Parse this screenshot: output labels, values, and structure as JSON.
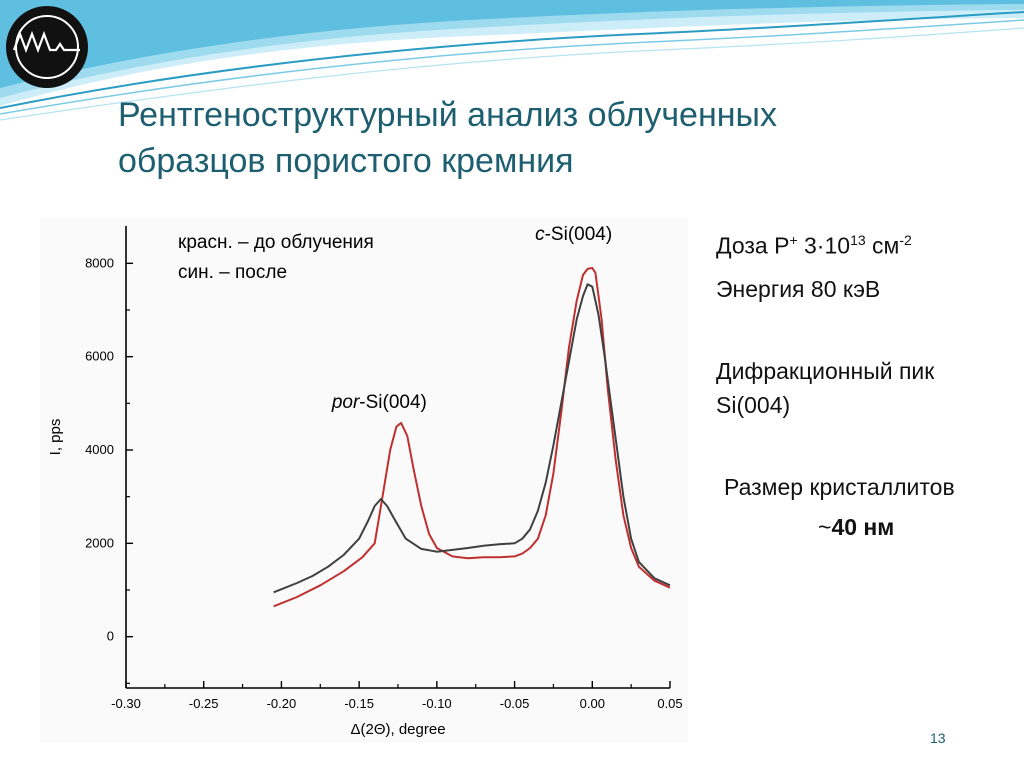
{
  "slide": {
    "title_line1": "Рентгеноструктурный анализ облученных",
    "title_line2": "образцов пористого кремния",
    "slide_number": "13",
    "logo_icon": "signal-wave-logo-icon",
    "colors": {
      "title": "#1d5f70",
      "wave_light": "#8fd3ea",
      "wave_dark": "#2b9cc4"
    }
  },
  "info": {
    "dose_label": "Доза P",
    "dose_sup": "+",
    "dose_mantissa": "3·10",
    "dose_exp": "13",
    "dose_unit": "см",
    "dose_unit_exp": "-2",
    "energy": "Энергия 80 кэВ",
    "peak_line1": "Дифракционный пик",
    "peak_line2": "Si(004)",
    "crystallite_label": "Размер кристаллитов",
    "crystallite_approx": "~",
    "crystallite_value": "40 нм"
  },
  "chart_data": {
    "type": "line",
    "xlabel": "Δ(2Θ), degree",
    "ylabel": "I, pps",
    "xlim": [
      -0.3,
      0.05
    ],
    "ylim": [
      -1100,
      8800
    ],
    "x_ticks": [
      "-0.30",
      "-0.25",
      "-0.20",
      "-0.15",
      "-0.10",
      "-0.05",
      "0.00",
      "0.05"
    ],
    "x_tick_values": [
      -0.3,
      -0.25,
      -0.2,
      -0.15,
      -0.1,
      -0.05,
      0.0,
      0.05
    ],
    "y_ticks": [
      "0",
      "2000",
      "4000",
      "6000",
      "8000"
    ],
    "y_tick_values": [
      0,
      2000,
      4000,
      6000,
      8000
    ],
    "grid": false,
    "legend": {
      "line1": "красн. – до облучения",
      "line2": "син. – после",
      "placement": "top-left"
    },
    "annotations": [
      {
        "italic": "por",
        "text": "-Si(004)",
        "x": -0.137,
        "y": 4900
      },
      {
        "italic": "c",
        "text": "-Si(004)",
        "x": -0.012,
        "y": 8500
      }
    ],
    "series": [
      {
        "color": "#c03030",
        "x": [
          -0.205,
          -0.19,
          -0.175,
          -0.16,
          -0.148,
          -0.14,
          -0.135,
          -0.13,
          -0.126,
          -0.123,
          -0.119,
          -0.115,
          -0.11,
          -0.105,
          -0.1,
          -0.09,
          -0.08,
          -0.07,
          -0.06,
          -0.05,
          -0.045,
          -0.04,
          -0.035,
          -0.03,
          -0.025,
          -0.02,
          -0.015,
          -0.01,
          -0.006,
          -0.003,
          0.0,
          0.002,
          0.006,
          0.01,
          0.015,
          0.02,
          0.025,
          0.03,
          0.04,
          0.05
        ],
        "y": [
          650,
          850,
          1100,
          1400,
          1700,
          2000,
          3000,
          4000,
          4500,
          4580,
          4300,
          3600,
          2800,
          2200,
          1900,
          1720,
          1680,
          1700,
          1700,
          1720,
          1780,
          1900,
          2100,
          2600,
          3500,
          4800,
          6200,
          7200,
          7750,
          7880,
          7900,
          7800,
          6800,
          5300,
          3800,
          2600,
          1900,
          1500,
          1200,
          1050
        ]
      },
      {
        "color": "#404040",
        "x": [
          -0.205,
          -0.19,
          -0.18,
          -0.17,
          -0.16,
          -0.15,
          -0.144,
          -0.14,
          -0.136,
          -0.132,
          -0.127,
          -0.12,
          -0.11,
          -0.1,
          -0.09,
          -0.08,
          -0.07,
          -0.06,
          -0.05,
          -0.045,
          -0.04,
          -0.035,
          -0.03,
          -0.025,
          -0.02,
          -0.015,
          -0.01,
          -0.006,
          -0.003,
          0.0,
          0.004,
          0.008,
          0.012,
          0.016,
          0.02,
          0.025,
          0.03,
          0.04,
          0.05
        ],
        "y": [
          950,
          1150,
          1300,
          1500,
          1750,
          2100,
          2500,
          2800,
          2950,
          2800,
          2500,
          2100,
          1880,
          1820,
          1860,
          1900,
          1950,
          1980,
          2000,
          2100,
          2300,
          2700,
          3300,
          4100,
          5000,
          5900,
          6800,
          7300,
          7550,
          7500,
          6900,
          6000,
          5000,
          4000,
          3000,
          2100,
          1600,
          1250,
          1100
        ]
      }
    ]
  }
}
